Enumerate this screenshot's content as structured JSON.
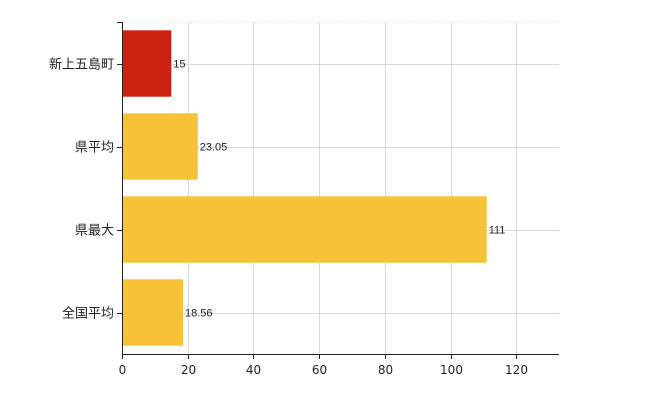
{
  "chart_data": {
    "type": "bar",
    "orientation": "horizontal",
    "categories": [
      "新上五島町",
      "県平均",
      "県最大",
      "全国平均"
    ],
    "values": [
      15,
      23.05,
      111,
      18.56
    ],
    "value_labels": [
      "15",
      "23.05",
      "111",
      "18.56"
    ],
    "colors": [
      "#cc2211",
      "#f7c236",
      "#f7c236",
      "#f7c236"
    ],
    "xlim": [
      0,
      133
    ],
    "xticks": [
      0,
      20,
      40,
      60,
      80,
      100,
      120
    ],
    "grid": true,
    "title": "",
    "xlabel": "",
    "ylabel": ""
  }
}
